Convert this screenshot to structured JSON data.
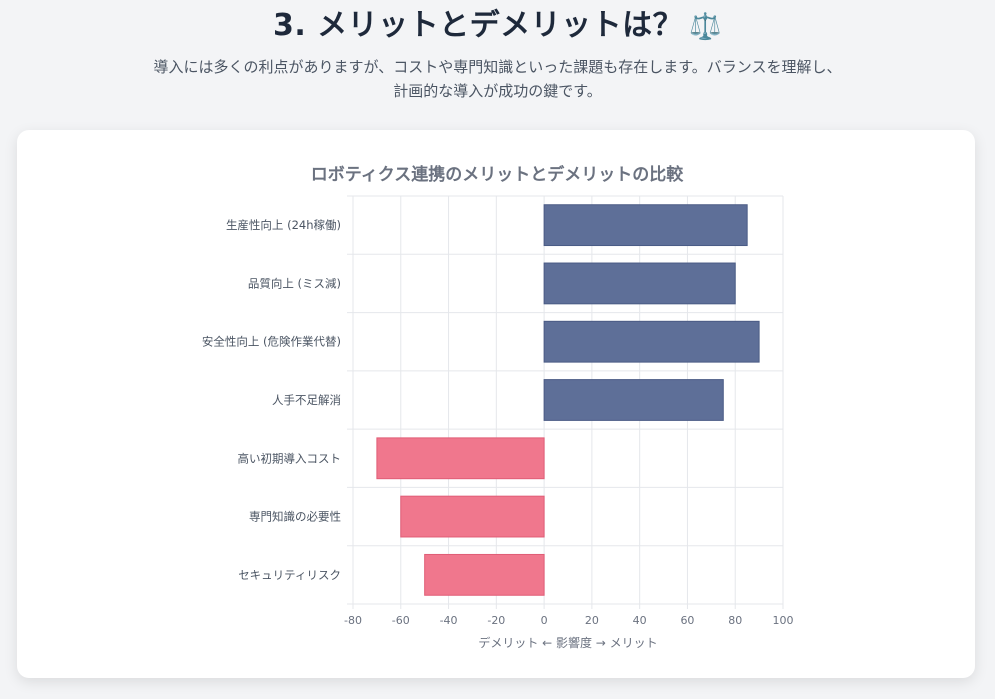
{
  "header": {
    "title": "3. メリットとデメリットは？",
    "title_icon": "⚖️",
    "subtitle": "導入には多くの利点がありますが、コストや専門知識といった課題も存在します。バランスを理解し、計画的な導入が成功の鍵です。"
  },
  "chart_data": {
    "type": "bar",
    "orientation": "horizontal",
    "title": "ロボティクス連携のメリットとデメリットの比較",
    "xlabel": "デメリット ← 影響度 → メリット",
    "ylabel": "",
    "xlim": [
      -80,
      100
    ],
    "x_ticks": [
      -80,
      -60,
      -40,
      -20,
      0,
      20,
      40,
      60,
      80,
      100
    ],
    "grid": true,
    "categories": [
      "生産性向上 (24h稼働)",
      "品質向上 (ミス減)",
      "安全性向上 (危険作業代替)",
      "人手不足解消",
      "高い初期導入コスト",
      "専門知識の必要性",
      "セキュリティリスク"
    ],
    "values": [
      85,
      80,
      90,
      75,
      -70,
      -60,
      -50
    ],
    "colors": {
      "positive": "#5e6f98",
      "negative": "#f0778d",
      "grid": "#e5e7eb"
    }
  }
}
